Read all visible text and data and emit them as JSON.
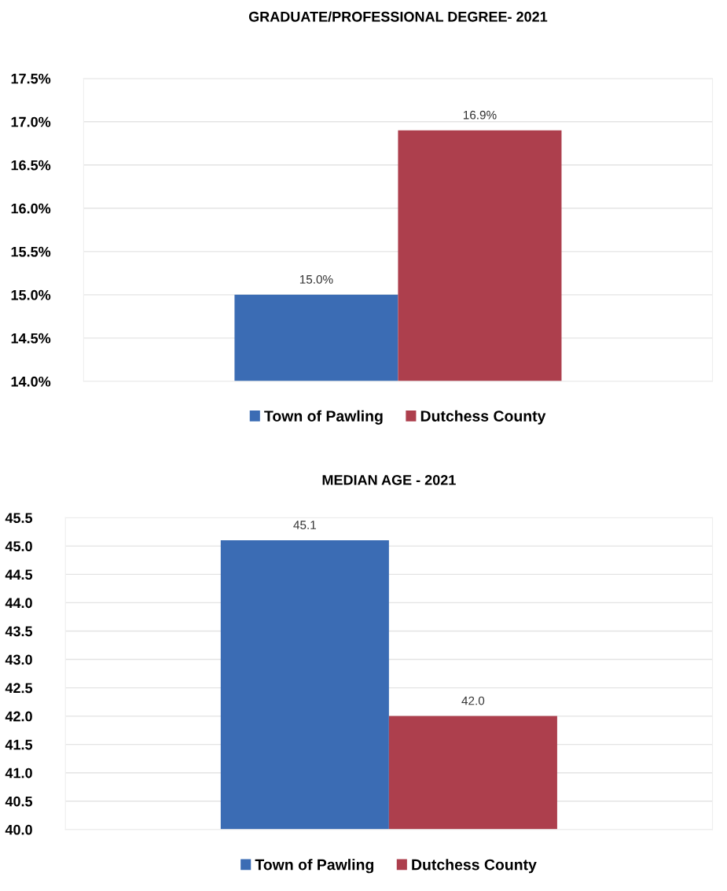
{
  "chart_data": [
    {
      "type": "bar",
      "title": "GRADUATE/PROFESSIONAL DEGREE- 2021",
      "categories": [
        null
      ],
      "series": [
        {
          "name": "Town of Pawling",
          "color": "#3b6cb4",
          "values": [
            15.0
          ],
          "value_labels": [
            "15.0%"
          ]
        },
        {
          "name": "Dutchess County",
          "color": "#ad3f4d",
          "values": [
            16.9
          ],
          "value_labels": [
            "16.9%"
          ]
        }
      ],
      "ylim": [
        14.0,
        17.5
      ],
      "yticks": [
        {
          "value": 14.0,
          "label": "14.0%"
        },
        {
          "value": 14.5,
          "label": "14.5%"
        },
        {
          "value": 15.0,
          "label": "15.0%"
        },
        {
          "value": 15.5,
          "label": "15.5%"
        },
        {
          "value": 16.0,
          "label": "16.0%"
        },
        {
          "value": 16.5,
          "label": "16.5%"
        },
        {
          "value": 17.0,
          "label": "17.0%"
        },
        {
          "value": 17.5,
          "label": "17.5%"
        }
      ],
      "grid": "y",
      "legend": "bottom"
    },
    {
      "type": "bar",
      "title": "MEDIAN AGE - 2021",
      "categories": [
        null
      ],
      "series": [
        {
          "name": "Town of Pawling",
          "color": "#3b6cb4",
          "values": [
            45.1
          ],
          "value_labels": [
            "45.1"
          ]
        },
        {
          "name": "Dutchess County",
          "color": "#ad3f4d",
          "values": [
            42.0
          ],
          "value_labels": [
            "42.0"
          ]
        }
      ],
      "ylim": [
        40.0,
        45.5
      ],
      "yticks": [
        {
          "value": 40.0,
          "label": "40.0"
        },
        {
          "value": 40.5,
          "label": "40.5"
        },
        {
          "value": 41.0,
          "label": "41.0"
        },
        {
          "value": 41.5,
          "label": "41.5"
        },
        {
          "value": 42.0,
          "label": "42.0"
        },
        {
          "value": 42.5,
          "label": "42.5"
        },
        {
          "value": 43.0,
          "label": "43.0"
        },
        {
          "value": 43.5,
          "label": "43.5"
        },
        {
          "value": 44.0,
          "label": "44.0"
        },
        {
          "value": 44.5,
          "label": "44.5"
        },
        {
          "value": 45.0,
          "label": "45.0"
        },
        {
          "value": 45.5,
          "label": "45.5"
        }
      ],
      "grid": "y",
      "legend": "bottom"
    }
  ]
}
